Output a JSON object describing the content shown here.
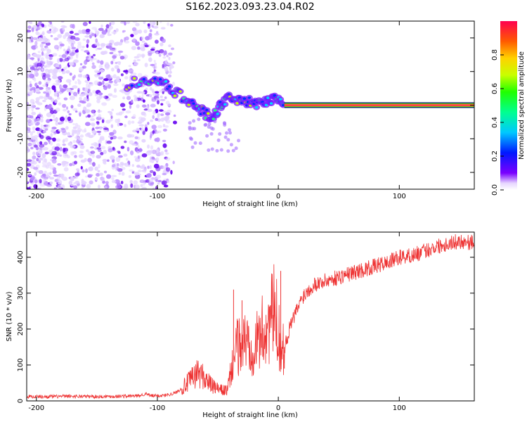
{
  "title": "S162.2023.093.23.04.R02",
  "chart_data": [
    {
      "type": "heatmap",
      "xlabel": "Height of straight line (km)",
      "ylabel": "Frequency (Hz)",
      "xlim": [
        -208,
        162
      ],
      "ylim": [
        -25,
        25
      ],
      "xticks": [
        -200,
        -100,
        0,
        100
      ],
      "yticks": [
        -20,
        -10,
        0,
        10,
        20
      ],
      "colorbar": {
        "label": "Normalized spectral amplitude",
        "range": [
          0,
          1
        ],
        "ticks": [
          0.0,
          0.2,
          0.4,
          0.6,
          0.8
        ]
      },
      "features": {
        "scatter_region_km": [
          -208,
          -88
        ],
        "dispersed_trace": [
          [
            -125,
            6
          ],
          [
            -105,
            8
          ],
          [
            -90,
            5
          ],
          [
            -75,
            1
          ],
          [
            -65,
            -1
          ],
          [
            -55,
            -4
          ],
          [
            -48,
            0
          ],
          [
            -40,
            2
          ],
          [
            -30,
            2
          ],
          [
            -20,
            0
          ],
          [
            -10,
            1
          ],
          [
            -3,
            2
          ],
          [
            5,
            0
          ]
        ],
        "tone_start_km": 5,
        "tone_frequency_hz": 0
      }
    },
    {
      "type": "line",
      "xlabel": "Height of straight line (km)",
      "ylabel": "SNR (10 * v/v)",
      "xlim": [
        -208,
        162
      ],
      "ylim": [
        0,
        470
      ],
      "xticks": [
        -200,
        -100,
        0,
        100
      ],
      "yticks": [
        0,
        100,
        200,
        300,
        400
      ],
      "color": "#ee3333",
      "series": [
        {
          "name": "SNR",
          "x": [
            -208,
            -190,
            -170,
            -150,
            -130,
            -115,
            -110,
            -105,
            -95,
            -85,
            -78,
            -72,
            -66,
            -60,
            -54,
            -48,
            -42,
            -38,
            -34,
            -30,
            -26,
            -22,
            -18,
            -14,
            -10,
            -6,
            -3,
            0,
            3,
            6,
            10,
            15,
            20,
            25,
            30,
            40,
            50,
            60,
            70,
            80,
            90,
            100,
            110,
            120,
            130,
            140,
            150,
            162
          ],
          "y": [
            12,
            12,
            13,
            12,
            13,
            14,
            20,
            14,
            15,
            22,
            40,
            60,
            80,
            60,
            40,
            30,
            30,
            100,
            150,
            160,
            170,
            150,
            160,
            190,
            200,
            230,
            250,
            200,
            130,
            160,
            210,
            250,
            290,
            310,
            325,
            335,
            345,
            355,
            365,
            375,
            385,
            400,
            405,
            415,
            430,
            438,
            445,
            440
          ]
        }
      ],
      "spikes": [
        {
          "x": -37,
          "y": 310
        },
        {
          "x": -30,
          "y": 280
        },
        {
          "x": 2,
          "y": 362
        },
        {
          "x": 5,
          "y": 90
        }
      ]
    }
  ]
}
